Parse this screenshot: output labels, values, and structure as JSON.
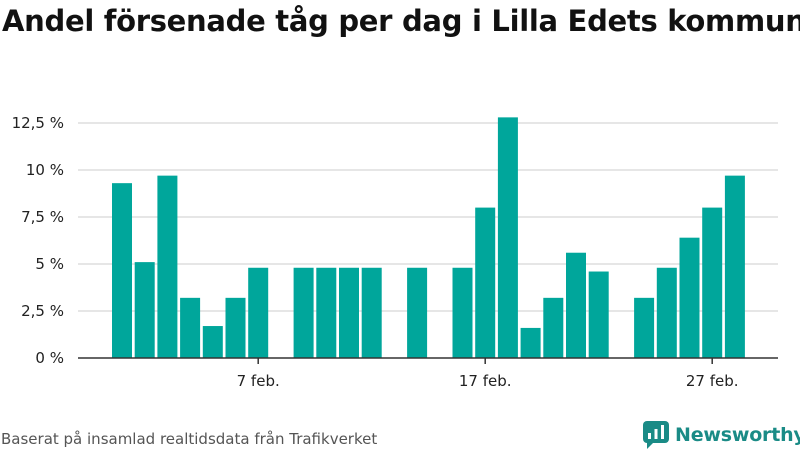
{
  "title": "Andel försenade tåg per dag i Lilla Edets kommun",
  "source": "Baserat på insamlad realtidsdata från Trafikverket",
  "brand": {
    "name": "Newsworthy",
    "icon": "newsworthy-logo-icon",
    "color": "#1a8b86"
  },
  "colors": {
    "bar": "#00a69b",
    "grid": "#dddddd",
    "axis": "#333333"
  },
  "chart_data": {
    "type": "bar",
    "x": [
      "1 feb.",
      "2 feb.",
      "3 feb.",
      "4 feb.",
      "5 feb.",
      "6 feb.",
      "7 feb.",
      "8 feb.",
      "9 feb.",
      "10 feb.",
      "11 feb.",
      "12 feb.",
      "13 feb.",
      "14 feb.",
      "15 feb.",
      "16 feb.",
      "17 feb.",
      "18 feb.",
      "19 feb.",
      "20 feb.",
      "21 feb.",
      "22 feb.",
      "23 feb.",
      "24 feb.",
      "25 feb.",
      "26 feb.",
      "27 feb.",
      "28 feb.",
      "29 feb."
    ],
    "values": [
      9.3,
      5.1,
      9.7,
      3.2,
      1.7,
      3.2,
      4.8,
      null,
      4.8,
      4.8,
      4.8,
      4.8,
      null,
      4.8,
      null,
      4.8,
      8.0,
      12.8,
      1.6,
      3.2,
      5.6,
      4.6,
      null,
      3.2,
      4.8,
      6.4,
      8.0,
      9.7,
      null
    ],
    "y_ticks": [
      0,
      2.5,
      5,
      7.5,
      10,
      12.5
    ],
    "y_tick_labels": [
      "0 %",
      "2,5 %",
      "5 %",
      "7,5 %",
      "10 %",
      "12,5 %"
    ],
    "x_ticks": [
      "7 feb.",
      "17 feb.",
      "27 feb."
    ],
    "ylim": [
      0,
      12.5
    ],
    "grid": true,
    "legend": "none"
  }
}
